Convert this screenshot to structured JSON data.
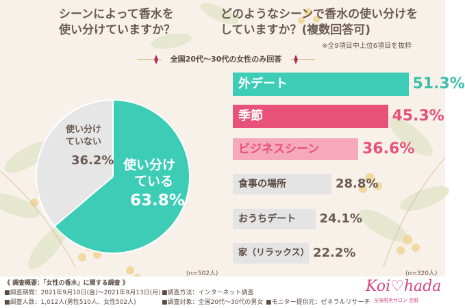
{
  "titles": {
    "left": [
      "シーンによって香水を",
      "使い分けていますか？"
    ],
    "right": [
      "どのようなシーンで香水の使い分けを",
      "していますか？(複数回答可)"
    ],
    "note": "※全9項目中上位6項目を抜粋",
    "banner": "全国20代〜30代の女性のみ回答"
  },
  "sample": {
    "left": "(n=502人)",
    "right": "(n=320人)"
  },
  "chart_data": [
    {
      "type": "pie",
      "slices": [
        {
          "name": "使い分けている",
          "value": 63.8,
          "lines": [
            "使い分け",
            "ている"
          ],
          "value_text": "63.8%",
          "color": "#3dcdb7"
        },
        {
          "name": "使い分けていない",
          "value": 36.2,
          "lines": [
            "使い分け",
            "ていない"
          ],
          "value_text": "36.2%",
          "color": "#e6e6e6"
        }
      ]
    },
    {
      "type": "bar",
      "orientation": "horizontal",
      "xlim": [
        0,
        60
      ],
      "bars": [
        {
          "label": "外デート",
          "value": 51.3,
          "value_text": "51.3%",
          "color": "#3dcdb7",
          "text_color": "#3dbfaa",
          "label_color": "#ffffff"
        },
        {
          "label": "季節",
          "value": 45.3,
          "value_text": "45.3%",
          "color": "#e8517a",
          "text_color": "#e8517a",
          "label_color": "#ffffff"
        },
        {
          "label": "ビジネスシーン",
          "value": 36.6,
          "value_text": "36.6%",
          "color": "#f6a9bd",
          "text_color": "#e8517a",
          "label_color": "#e8517a"
        },
        {
          "label": "食事の場所",
          "value": 28.8,
          "value_text": "28.8%",
          "color": "#e4e4e4",
          "text_color": "#6a5a52",
          "label_color": "#5a4a42"
        },
        {
          "label": "おうちデート",
          "value": 24.1,
          "value_text": "24.1%",
          "color": "#e4e4e4",
          "text_color": "#6a5a52",
          "label_color": "#5a4a42"
        },
        {
          "label": "家（リラックス）",
          "value": 22.2,
          "value_text": "22.2%",
          "color": "#e4e4e4",
          "text_color": "#6a5a52",
          "label_color": "#5a4a42"
        }
      ]
    }
  ],
  "footer": {
    "heading": "《 調査概要：「女性の香水」に関する調査 》",
    "period": "■調査期間：2021年9月10日(金)〜2021年9月13日(月)",
    "people": "■調査人数：1,012人(男性510人、女性502人)",
    "method": "■調査方法：インターネット調査",
    "target": "■調査対象：全国20代〜30代の男女",
    "monitor": "■モニター提供元：ゼネラルリサーチ"
  },
  "logo": {
    "name": "Koi♡hada",
    "tagline": "全身脱毛サロン 恋肌"
  }
}
